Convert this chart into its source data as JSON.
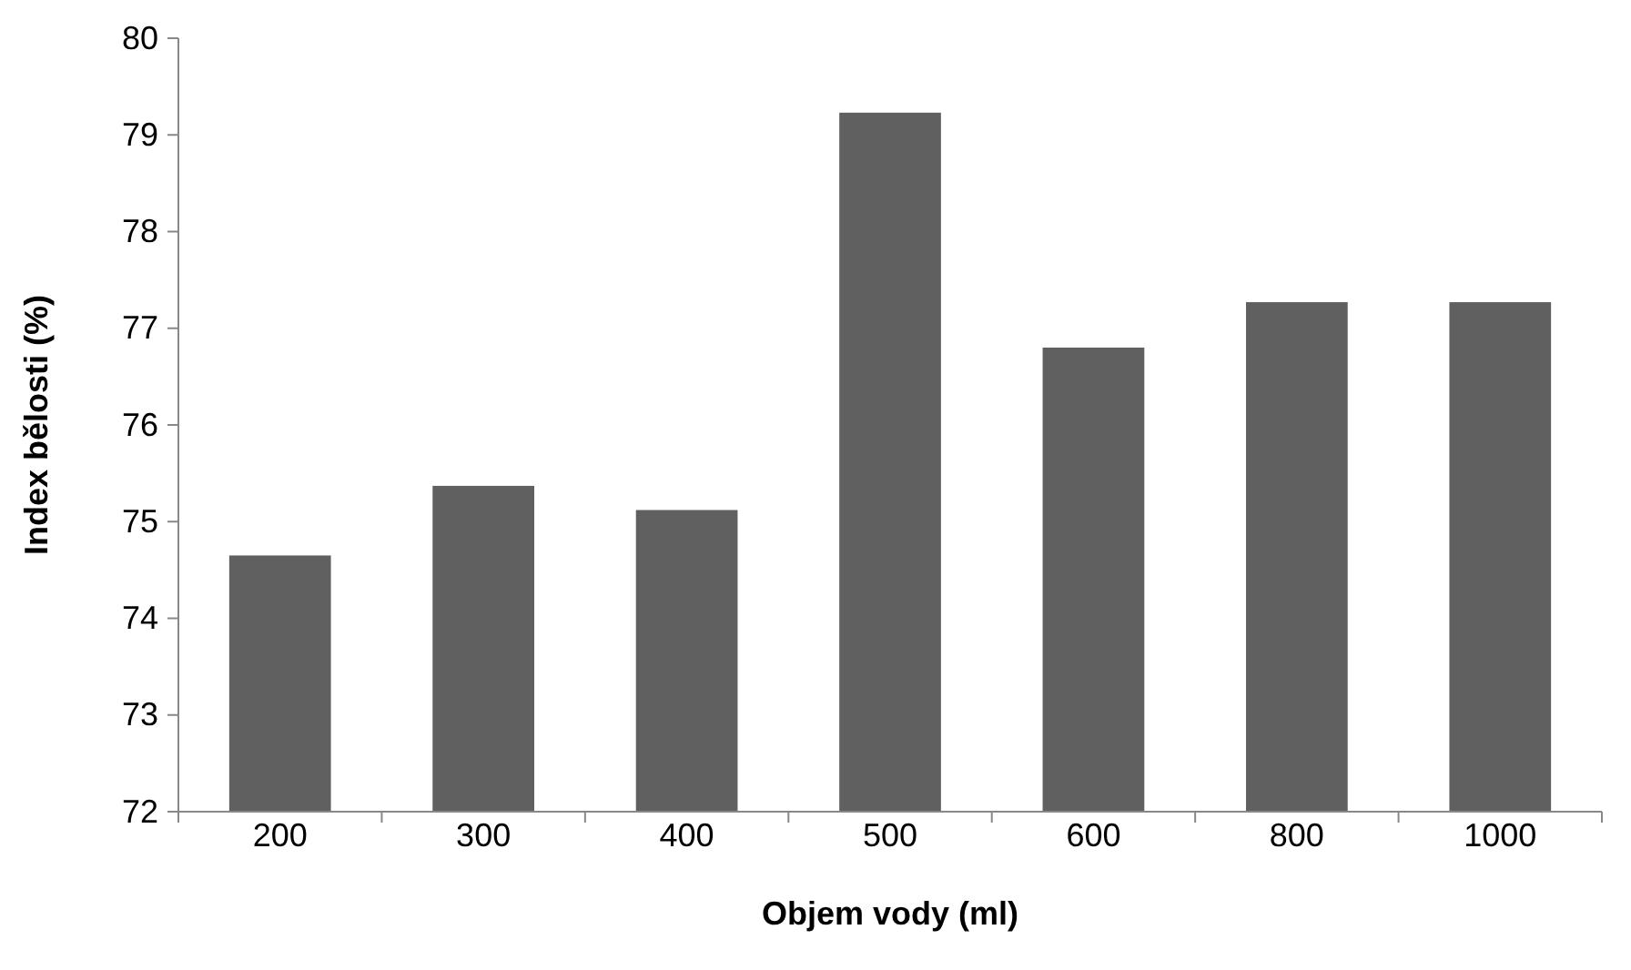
{
  "chart_data": {
    "type": "bar",
    "xlabel": "Objem vody (ml)",
    "ylabel": "Index bělosti (%)",
    "categories": [
      "200",
      "300",
      "400",
      "500",
      "600",
      "800",
      "1000"
    ],
    "values": [
      74.65,
      75.37,
      75.12,
      79.23,
      76.8,
      77.27,
      77.27
    ],
    "color": "#606060",
    "ylim": [
      72,
      80
    ],
    "yticks": [
      72,
      73,
      74,
      75,
      76,
      77,
      78,
      79,
      80
    ],
    "grid": false
  }
}
